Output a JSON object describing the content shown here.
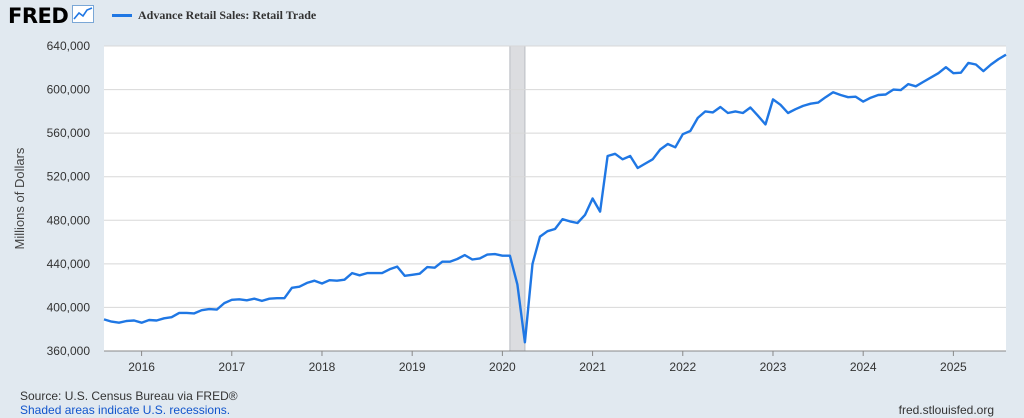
{
  "header": {
    "logo_text": "FRED",
    "logo_icon": "line-chart-icon",
    "legend_label": "Advance Retail Sales: Retail Trade"
  },
  "footer": {
    "source": "Source: U.S. Census Bureau via FRED®",
    "shaded_note": "Shaded areas indicate U.S. recessions.",
    "url": "fred.stlouisfed.org"
  },
  "colors": {
    "series": "#1f77e4",
    "background": "#e1e9f0",
    "plot_background": "#ffffff",
    "recession": "#dcdde0"
  },
  "chart_data": {
    "type": "line",
    "title": "",
    "xlabel": "",
    "ylabel": "Millions of Dollars",
    "ylim": [
      360000,
      640000
    ],
    "xlim": [
      "2015-08",
      "2025-08"
    ],
    "yticks": [
      360000,
      400000,
      440000,
      480000,
      520000,
      560000,
      600000,
      640000
    ],
    "ytick_labels": [
      "360,000",
      "400,000",
      "440,000",
      "480,000",
      "520,000",
      "560,000",
      "600,000",
      "640,000"
    ],
    "xtick_labels": [
      "2016",
      "2017",
      "2018",
      "2019",
      "2020",
      "2021",
      "2022",
      "2023",
      "2024",
      "2025"
    ],
    "xtick_dates": [
      "2016-01",
      "2017-01",
      "2018-01",
      "2019-01",
      "2020-01",
      "2021-01",
      "2022-01",
      "2023-01",
      "2024-01",
      "2025-01"
    ],
    "grid": true,
    "recessions": [
      {
        "start": "2020-02",
        "end": "2020-04"
      }
    ],
    "series": [
      {
        "name": "Advance Retail Sales: Retail Trade",
        "x": [
          "2015-08",
          "2015-09",
          "2015-10",
          "2015-11",
          "2015-12",
          "2016-01",
          "2016-02",
          "2016-03",
          "2016-04",
          "2016-05",
          "2016-06",
          "2016-07",
          "2016-08",
          "2016-09",
          "2016-10",
          "2016-11",
          "2016-12",
          "2017-01",
          "2017-02",
          "2017-03",
          "2017-04",
          "2017-05",
          "2017-06",
          "2017-07",
          "2017-08",
          "2017-09",
          "2017-10",
          "2017-11",
          "2017-12",
          "2018-01",
          "2018-02",
          "2018-03",
          "2018-04",
          "2018-05",
          "2018-06",
          "2018-07",
          "2018-08",
          "2018-09",
          "2018-10",
          "2018-11",
          "2018-12",
          "2019-01",
          "2019-02",
          "2019-03",
          "2019-04",
          "2019-05",
          "2019-06",
          "2019-07",
          "2019-08",
          "2019-09",
          "2019-10",
          "2019-11",
          "2019-12",
          "2020-01",
          "2020-02",
          "2020-03",
          "2020-04",
          "2020-05",
          "2020-06",
          "2020-07",
          "2020-08",
          "2020-09",
          "2020-10",
          "2020-11",
          "2020-12",
          "2021-01",
          "2021-02",
          "2021-03",
          "2021-04",
          "2021-05",
          "2021-06",
          "2021-07",
          "2021-08",
          "2021-09",
          "2021-10",
          "2021-11",
          "2021-12",
          "2022-01",
          "2022-02",
          "2022-03",
          "2022-04",
          "2022-05",
          "2022-06",
          "2022-07",
          "2022-08",
          "2022-09",
          "2022-10",
          "2022-11",
          "2022-12",
          "2023-01",
          "2023-02",
          "2023-03",
          "2023-04",
          "2023-05",
          "2023-06",
          "2023-07",
          "2023-08",
          "2023-09",
          "2023-10",
          "2023-11",
          "2023-12",
          "2024-01",
          "2024-02",
          "2024-03",
          "2024-04",
          "2024-05",
          "2024-06",
          "2024-07",
          "2024-08",
          "2024-09",
          "2024-10",
          "2024-11",
          "2024-12",
          "2025-01",
          "2025-02",
          "2025-03",
          "2025-04",
          "2025-05",
          "2025-06",
          "2025-07",
          "2025-08"
        ],
        "values": [
          389000,
          387000,
          386000,
          387500,
          388000,
          386000,
          388500,
          388000,
          390000,
          391000,
          395000,
          395000,
          394500,
          397500,
          398500,
          398000,
          404000,
          407000,
          407500,
          406500,
          408000,
          406000,
          408000,
          408500,
          408500,
          418000,
          419000,
          422500,
          424500,
          422000,
          425000,
          424500,
          425500,
          431500,
          429500,
          431500,
          431500,
          431500,
          435000,
          437500,
          429000,
          430000,
          431000,
          437000,
          436500,
          442000,
          442000,
          444500,
          448000,
          444000,
          445000,
          448500,
          449000,
          447500,
          447500,
          421000,
          368000,
          440000,
          465000,
          470000,
          472000,
          481000,
          479000,
          477500,
          485000,
          500000,
          488000,
          539000,
          541000,
          536000,
          539000,
          528000,
          532000,
          536000,
          545000,
          550000,
          547000,
          559000,
          562000,
          574000,
          580000,
          579000,
          584000,
          578500,
          580000,
          578500,
          583500,
          576000,
          568000,
          591000,
          586000,
          578500,
          582000,
          585000,
          587000,
          588000,
          593000,
          597500,
          595000,
          593000,
          593500,
          589000,
          592500,
          595000,
          595500,
          600000,
          599500,
          605000,
          603000,
          607000,
          611000,
          615000,
          620500,
          615000,
          615500,
          624500,
          623000,
          617000,
          623000,
          628000,
          632000
        ]
      }
    ]
  }
}
